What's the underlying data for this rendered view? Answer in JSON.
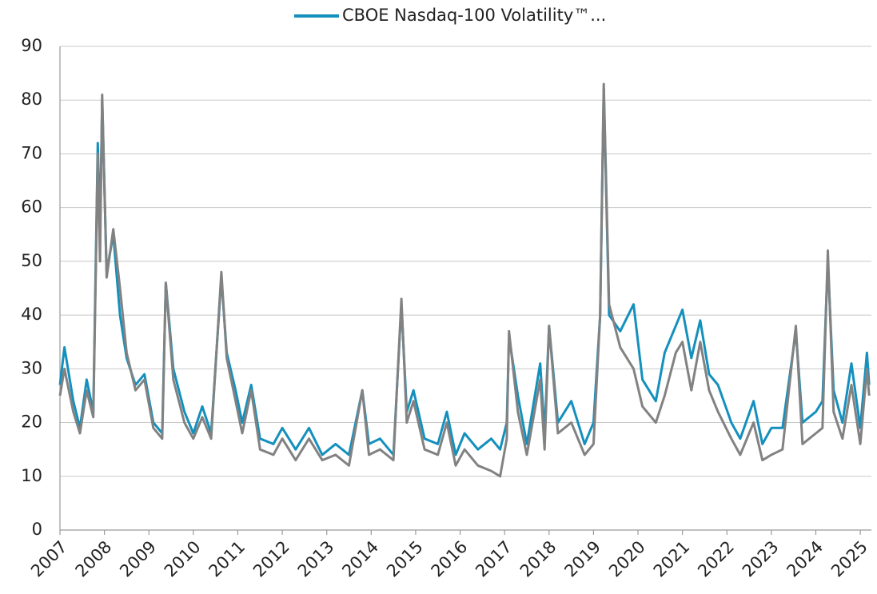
{
  "chart_data": {
    "type": "line",
    "x": [
      2007.0,
      2007.1,
      2007.3,
      2007.45,
      2007.6,
      2007.75,
      2007.85,
      2007.9,
      2007.95,
      2008.05,
      2008.2,
      2008.35,
      2008.5,
      2008.7,
      2008.9,
      2009.1,
      2009.3,
      2009.38,
      2009.55,
      2009.8,
      2010.0,
      2010.2,
      2010.4,
      2010.63,
      2010.75,
      2010.95,
      2011.1,
      2011.3,
      2011.5,
      2011.8,
      2012.0,
      2012.3,
      2012.6,
      2012.9,
      2013.2,
      2013.5,
      2013.8,
      2013.95,
      2014.2,
      2014.5,
      2014.68,
      2014.8,
      2014.95,
      2015.2,
      2015.5,
      2015.7,
      2015.9,
      2016.1,
      2016.4,
      2016.7,
      2016.9,
      2017.05,
      2017.1,
      2017.3,
      2017.5,
      2017.8,
      2017.9,
      2018.0,
      2018.2,
      2018.5,
      2018.8,
      2019.0,
      2019.15,
      2019.23,
      2019.35,
      2019.6,
      2019.9,
      2020.1,
      2020.4,
      2020.6,
      2020.85,
      2021.0,
      2021.2,
      2021.4,
      2021.6,
      2021.8,
      2022.1,
      2022.3,
      2022.6,
      2022.8,
      2023.0,
      2023.25,
      2023.55,
      2023.7,
      2024.0,
      2024.15,
      2024.27,
      2024.4,
      2024.6,
      2024.8,
      2025.0,
      2025.15,
      2025.2
    ],
    "series": [
      {
        "name": "CBOE Nasdaq-100 Volatility™...",
        "color": "#1490bd",
        "values": [
          27,
          34,
          24,
          19,
          28,
          22,
          72,
          55,
          80,
          48,
          55,
          40,
          32,
          27,
          29,
          20,
          18,
          46,
          30,
          22,
          18,
          23,
          18,
          47,
          33,
          26,
          20,
          27,
          17,
          16,
          19,
          15,
          19,
          14,
          16,
          14,
          26,
          16,
          17,
          14,
          42,
          22,
          26,
          17,
          16,
          22,
          14,
          18,
          15,
          17,
          15,
          20,
          36,
          25,
          16,
          31,
          18,
          38,
          20,
          24,
          16,
          20,
          40,
          82,
          40,
          37,
          42,
          28,
          24,
          33,
          38,
          41,
          32,
          39,
          29,
          27,
          20,
          17,
          24,
          16,
          19,
          19,
          37,
          20,
          22,
          24,
          50,
          26,
          20,
          31,
          19,
          33,
          27
        ]
      },
      {
        "color": "#828282",
        "values": [
          25,
          30,
          22,
          18,
          26,
          21,
          70,
          50,
          81,
          47,
          56,
          45,
          33,
          26,
          28,
          19,
          17,
          46,
          28,
          20,
          17,
          21,
          17,
          48,
          32,
          24,
          18,
          26,
          15,
          14,
          17,
          13,
          17,
          13,
          14,
          12,
          26,
          14,
          15,
          13,
          43,
          20,
          24,
          15,
          14,
          20,
          12,
          15,
          12,
          11,
          10,
          17,
          37,
          22,
          14,
          28,
          15,
          38,
          18,
          20,
          14,
          16,
          40,
          83,
          42,
          34,
          30,
          23,
          20,
          25,
          33,
          35,
          26,
          35,
          26,
          22,
          17,
          14,
          20,
          13,
          14,
          15,
          38,
          16,
          18,
          19,
          52,
          22,
          17,
          27,
          16,
          30,
          25
        ]
      }
    ],
    "xlim": [
      2007,
      2025.25
    ],
    "xticks": [
      2007,
      2008,
      2009,
      2010,
      2011,
      2012,
      2013,
      2014,
      2015,
      2016,
      2017,
      2018,
      2019,
      2020,
      2021,
      2022,
      2023,
      2024,
      2025
    ],
    "ylim": [
      0,
      90
    ],
    "yticks": [
      0,
      10,
      20,
      30,
      40,
      50,
      60,
      70,
      80,
      90
    ],
    "grid": true
  }
}
